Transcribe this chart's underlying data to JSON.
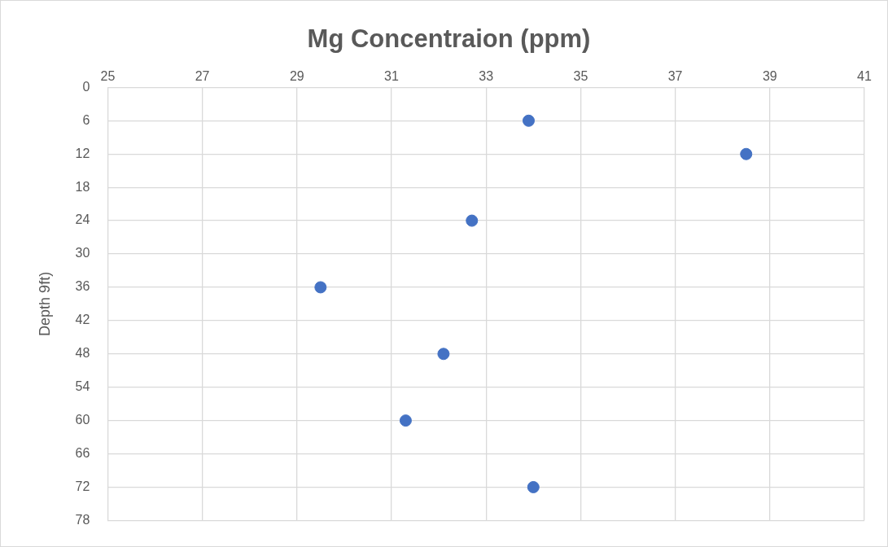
{
  "chart_data": {
    "type": "scatter",
    "title": "Mg Concentraion (ppm)",
    "ylabel": "Depth 9ft)",
    "series": [
      {
        "color": "#4472c4",
        "x": [
          33.9,
          38.5,
          32.7,
          29.5,
          32.1,
          31.3,
          34.0
        ],
        "values": [
          6,
          12,
          24,
          36,
          48,
          60,
          72
        ]
      }
    ],
    "xlim": [
      25,
      41
    ],
    "xticks": [
      25,
      27,
      29,
      31,
      33,
      35,
      37,
      39,
      41
    ],
    "ylim": [
      78,
      0
    ],
    "yticks": [
      0,
      6,
      12,
      18,
      24,
      30,
      36,
      42,
      48,
      54,
      60,
      66,
      72,
      78
    ],
    "grid": true,
    "marker": "circle",
    "legend": false
  }
}
